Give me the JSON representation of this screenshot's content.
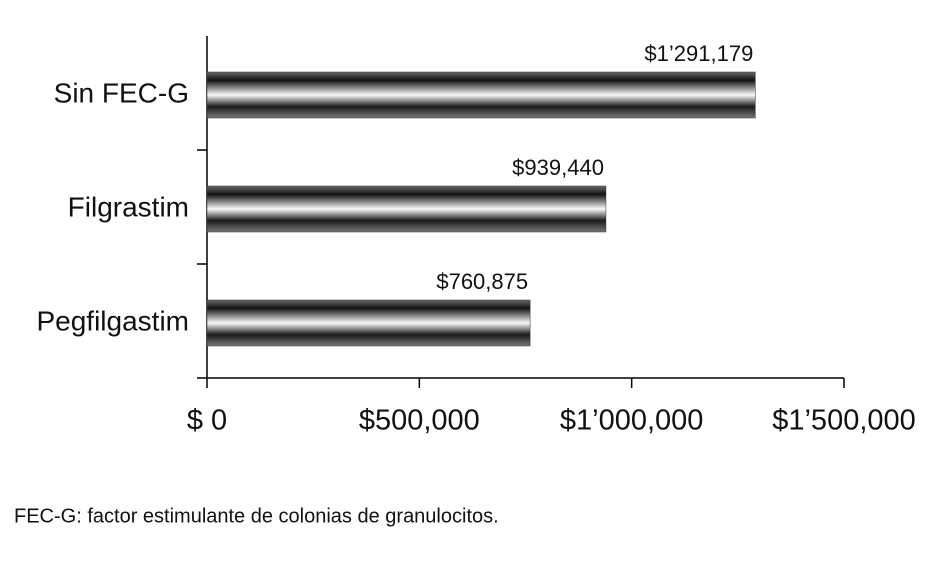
{
  "chart_data": {
    "type": "hbar",
    "categories": [
      "Sin FEC-G",
      "Filgrastim",
      "Pegfilgastim"
    ],
    "values": [
      1291179,
      939440,
      760875
    ],
    "value_labels": [
      "$1’291,179",
      "$939,440",
      "$760,875"
    ],
    "xlim": [
      0,
      1500000
    ],
    "xticks": [
      {
        "value": 0,
        "label": "$ 0"
      },
      {
        "value": 500000,
        "label": "$500,000"
      },
      {
        "value": 1000000,
        "label": "$1’000,000"
      },
      {
        "value": 1500000,
        "label": "$1’500,000"
      }
    ],
    "footnote": "FEC-G: factor estimulante de colonias de granulocitos."
  }
}
